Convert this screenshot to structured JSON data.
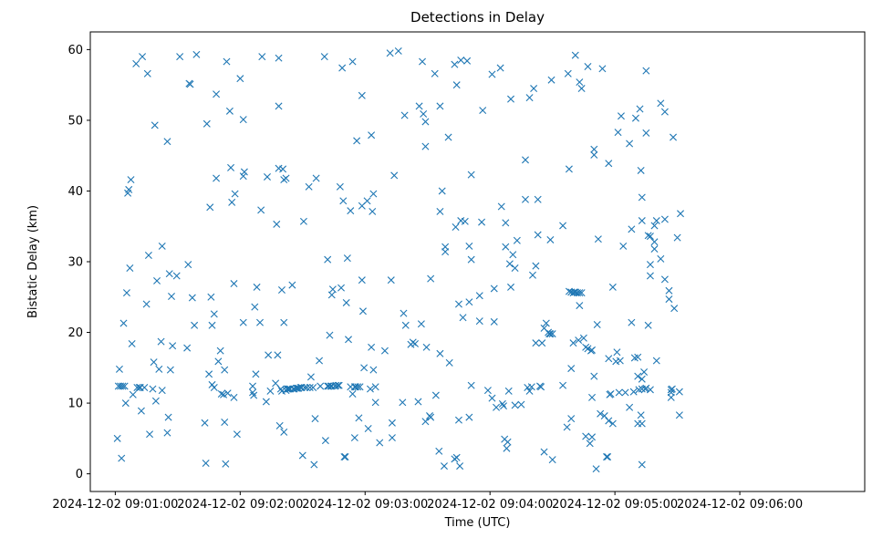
{
  "chart_data": {
    "type": "scatter",
    "title": "Detections in Delay",
    "xlabel": "Time (UTC)",
    "ylabel": "Bistatic Delay (km)",
    "marker": "x",
    "color": "#1f77b4",
    "grid": false,
    "x_range_seconds_after_0901": [
      -12,
      360
    ],
    "y_range": [
      -2.5,
      62.5
    ],
    "x_ticks": [
      "2024-12-02 09:01:00",
      "2024-12-02 09:02:00",
      "2024-12-02 09:03:00",
      "2024-12-02 09:04:00",
      "2024-12-02 09:05:00",
      "2024-12-02 09:06:00"
    ],
    "y_ticks": [
      0,
      10,
      20,
      30,
      40,
      50,
      60
    ],
    "points": [
      [
        1,
        5
      ],
      [
        1.5,
        12.4
      ],
      [
        2,
        14.8
      ],
      [
        2.5,
        12.4
      ],
      [
        3,
        2.2
      ],
      [
        3.5,
        12.4
      ],
      [
        4,
        21.3
      ],
      [
        4.5,
        12.4
      ],
      [
        5,
        10
      ],
      [
        5.5,
        25.6
      ],
      [
        6,
        39.7
      ],
      [
        6.5,
        40.2
      ],
      [
        7,
        29.1
      ],
      [
        7.5,
        41.6
      ],
      [
        8,
        18.4
      ],
      [
        8.5,
        11.2
      ],
      [
        10,
        58
      ],
      [
        10.5,
        12.2
      ],
      [
        11.5,
        12.2
      ],
      [
        12,
        12.2
      ],
      [
        12.5,
        8.9
      ],
      [
        13,
        59
      ],
      [
        14,
        12.2
      ],
      [
        15.5,
        56.6
      ],
      [
        15,
        24
      ],
      [
        16,
        30.9
      ],
      [
        16.5,
        5.6
      ],
      [
        18,
        12
      ],
      [
        18.5,
        15.8
      ],
      [
        19,
        49.3
      ],
      [
        19.5,
        10.3
      ],
      [
        20,
        27.3
      ],
      [
        21,
        14.8
      ],
      [
        22.5,
        32.2
      ],
      [
        22,
        18.7
      ],
      [
        22.5,
        11.8
      ],
      [
        25,
        47
      ],
      [
        25.5,
        8
      ],
      [
        25,
        5.8
      ],
      [
        26,
        28.3
      ],
      [
        26.5,
        14.7
      ],
      [
        27,
        25.1
      ],
      [
        27.5,
        18.1
      ],
      [
        29.5,
        28
      ],
      [
        31,
        59
      ],
      [
        34.5,
        17.8
      ],
      [
        35,
        29.6
      ],
      [
        35.5,
        55.2
      ],
      [
        36,
        55.1
      ],
      [
        37,
        24.9
      ],
      [
        38,
        21
      ],
      [
        39,
        59.3
      ],
      [
        43,
        7.2
      ],
      [
        43.5,
        1.5
      ],
      [
        44,
        49.5
      ],
      [
        45.5,
        37.7
      ],
      [
        45,
        14.1
      ],
      [
        46,
        25
      ],
      [
        46.5,
        21
      ],
      [
        46.5,
        12.6
      ],
      [
        47.5,
        12.2
      ],
      [
        47.5,
        22.6
      ],
      [
        48.5,
        53.7
      ],
      [
        48.5,
        41.8
      ],
      [
        49.5,
        15.9
      ],
      [
        50.5,
        17.4
      ],
      [
        51,
        11.3
      ],
      [
        52,
        11.2
      ],
      [
        52.5,
        14.7
      ],
      [
        52.5,
        7.3
      ],
      [
        53,
        1.4
      ],
      [
        53.5,
        58.3
      ],
      [
        54,
        11.4
      ],
      [
        55,
        51.3
      ],
      [
        55.5,
        43.3
      ],
      [
        56,
        38.4
      ],
      [
        57,
        26.9
      ],
      [
        57,
        10.8
      ],
      [
        57.5,
        39.6
      ],
      [
        58.5,
        5.6
      ],
      [
        60,
        55.9
      ],
      [
        61.5,
        50.1
      ],
      [
        61.5,
        21.4
      ],
      [
        62,
        42.7
      ],
      [
        61.5,
        42.1
      ],
      [
        66,
        12.4
      ],
      [
        66,
        11.5
      ],
      [
        66.5,
        11.1
      ],
      [
        67,
        23.6
      ],
      [
        67.5,
        14.1
      ],
      [
        68,
        26.4
      ],
      [
        69.5,
        21.4
      ],
      [
        70,
        37.3
      ],
      [
        70.5,
        59
      ],
      [
        72.5,
        10.2
      ],
      [
        73,
        42
      ],
      [
        73.5,
        16.8
      ],
      [
        74.5,
        11.7
      ],
      [
        77,
        12.8
      ],
      [
        77.5,
        35.3
      ],
      [
        78.5,
        43.2
      ],
      [
        78,
        16.8
      ],
      [
        78.5,
        52
      ],
      [
        78.5,
        58.8
      ],
      [
        79,
        6.8
      ],
      [
        79.5,
        12
      ],
      [
        80,
        11.7
      ],
      [
        81,
        41.6
      ],
      [
        80,
        26
      ],
      [
        80.5,
        43.1
      ],
      [
        81,
        21.4
      ],
      [
        81,
        5.9
      ],
      [
        82,
        41.8
      ],
      [
        82,
        11.8
      ],
      [
        82.5,
        12
      ],
      [
        83,
        12
      ],
      [
        83.5,
        12
      ],
      [
        84,
        12
      ],
      [
        85,
        26.7
      ],
      [
        85.5,
        12
      ],
      [
        86,
        12
      ],
      [
        87,
        12.1
      ],
      [
        87.5,
        12.1
      ],
      [
        88,
        12.1
      ],
      [
        89,
        12.2
      ],
      [
        89.5,
        12.2
      ],
      [
        90,
        2.6
      ],
      [
        90.5,
        35.7
      ],
      [
        91,
        12.2
      ],
      [
        92,
        12.2
      ],
      [
        93,
        40.6
      ],
      [
        93.5,
        12.2
      ],
      [
        94,
        13.7
      ],
      [
        95,
        12.2
      ],
      [
        95.5,
        1.3
      ],
      [
        96,
        7.8
      ],
      [
        96.5,
        41.8
      ],
      [
        98,
        16
      ],
      [
        98.5,
        12.4
      ],
      [
        100.5,
        59
      ],
      [
        101,
        4.7
      ],
      [
        102,
        30.3
      ],
      [
        102,
        12.4
      ],
      [
        102.5,
        12.4
      ],
      [
        103.5,
        12.4
      ],
      [
        103,
        19.6
      ],
      [
        104,
        25.3
      ],
      [
        104,
        12.4
      ],
      [
        104.5,
        26.1
      ],
      [
        105.5,
        12.4
      ],
      [
        106,
        12.5
      ],
      [
        107,
        12.5
      ],
      [
        107.5,
        12.5
      ],
      [
        108,
        40.6
      ],
      [
        108.5,
        26.3
      ],
      [
        109,
        57.4
      ],
      [
        109.5,
        38.6
      ],
      [
        110,
        2.4
      ],
      [
        110.5,
        2.4
      ],
      [
        111,
        24.2
      ],
      [
        111.5,
        30.5
      ],
      [
        112,
        19
      ],
      [
        113,
        12.3
      ],
      [
        113,
        37.2
      ],
      [
        114,
        11.3
      ],
      [
        114,
        58.3
      ],
      [
        115,
        12.3
      ],
      [
        115,
        5.1
      ],
      [
        115.5,
        12.3
      ],
      [
        116,
        47.1
      ],
      [
        116.5,
        12.3
      ],
      [
        117,
        7.9
      ],
      [
        117.5,
        12.3
      ],
      [
        118.5,
        37.9
      ],
      [
        118.5,
        53.5
      ],
      [
        118.5,
        27.4
      ],
      [
        119.5,
        15
      ],
      [
        119,
        23
      ],
      [
        121.5,
        6.4
      ],
      [
        121,
        38.6
      ],
      [
        122.5,
        12
      ],
      [
        123,
        17.9
      ],
      [
        123.5,
        37.1
      ],
      [
        123,
        47.9
      ],
      [
        124,
        39.6
      ],
      [
        124,
        14.7
      ],
      [
        125,
        10.1
      ],
      [
        125,
        12.3
      ],
      [
        127,
        4.4
      ],
      [
        129.5,
        17.4
      ],
      [
        132,
        59.5
      ],
      [
        132.5,
        27.4
      ],
      [
        133,
        5.1
      ],
      [
        133,
        7.2
      ],
      [
        134,
        42.2
      ],
      [
        136,
        59.8
      ],
      [
        138,
        10.1
      ],
      [
        138.5,
        22.7
      ],
      [
        139,
        50.7
      ],
      [
        139.5,
        21
      ],
      [
        142,
        18.3
      ],
      [
        143,
        18.6
      ],
      [
        144,
        18.4
      ],
      [
        145.5,
        10.2
      ],
      [
        146,
        52
      ],
      [
        147,
        21.2
      ],
      [
        147.5,
        58.3
      ],
      [
        148,
        50.9
      ],
      [
        149,
        49.8
      ],
      [
        149,
        46.3
      ],
      [
        149,
        7.4
      ],
      [
        149.5,
        17.9
      ],
      [
        151,
        8.2
      ],
      [
        151.5,
        8
      ],
      [
        151.5,
        27.6
      ],
      [
        153.5,
        56.6
      ],
      [
        154,
        11.1
      ],
      [
        155.5,
        3.2
      ],
      [
        156,
        37.1
      ],
      [
        156,
        52
      ],
      [
        156,
        17
      ],
      [
        157,
        40
      ],
      [
        158,
        1.1
      ],
      [
        158.5,
        31.4
      ],
      [
        158.5,
        32.1
      ],
      [
        160,
        47.6
      ],
      [
        160.5,
        15.7
      ],
      [
        163,
        57.9
      ],
      [
        163.5,
        34.9
      ],
      [
        163,
        2.1
      ],
      [
        164,
        2.3
      ],
      [
        164,
        55
      ],
      [
        165,
        24
      ],
      [
        165.5,
        1.1
      ],
      [
        165,
        7.6
      ],
      [
        166,
        35.8
      ],
      [
        166,
        58.5
      ],
      [
        167,
        22.1
      ],
      [
        168,
        35.7
      ],
      [
        169,
        58.4
      ],
      [
        170,
        24.3
      ],
      [
        170,
        32.2
      ],
      [
        170,
        8
      ],
      [
        171,
        30.3
      ],
      [
        171,
        42.3
      ],
      [
        171,
        12.5
      ],
      [
        175,
        25.2
      ],
      [
        175,
        21.6
      ],
      [
        176,
        35.6
      ],
      [
        176.5,
        51.4
      ],
      [
        179,
        11.8
      ],
      [
        181,
        10.7
      ],
      [
        181,
        56.5
      ],
      [
        182,
        21.5
      ],
      [
        182,
        26.2
      ],
      [
        183,
        9.4
      ],
      [
        185,
        57.4
      ],
      [
        185.5,
        37.8
      ],
      [
        186,
        9.9
      ],
      [
        186.5,
        9.6
      ],
      [
        187,
        4.9
      ],
      [
        187.5,
        35.5
      ],
      [
        187.5,
        32.1
      ],
      [
        188,
        3.6
      ],
      [
        188.5,
        4.5
      ],
      [
        189,
        11.7
      ],
      [
        189.5,
        29.7
      ],
      [
        190,
        53
      ],
      [
        190,
        26.4
      ],
      [
        191,
        31
      ],
      [
        192,
        29.1
      ],
      [
        192,
        9.7
      ],
      [
        193,
        33
      ],
      [
        195,
        9.8
      ],
      [
        197,
        44.4
      ],
      [
        197,
        38.8
      ],
      [
        198,
        12.2
      ],
      [
        199,
        53.2
      ],
      [
        199,
        11.7
      ],
      [
        200,
        12.3
      ],
      [
        200.5,
        28.1
      ],
      [
        201,
        54.5
      ],
      [
        202,
        18.5
      ],
      [
        202,
        29.4
      ],
      [
        203,
        38.8
      ],
      [
        203,
        33.8
      ],
      [
        204,
        12.4
      ],
      [
        204.5,
        12.3
      ],
      [
        205,
        18.5
      ],
      [
        206,
        20.6
      ],
      [
        206,
        3.1
      ],
      [
        207,
        21.3
      ],
      [
        208,
        20
      ],
      [
        208.5,
        19.8
      ],
      [
        209,
        19.8
      ],
      [
        209,
        33.1
      ],
      [
        209.5,
        55.7
      ],
      [
        210,
        2
      ],
      [
        210,
        19.8
      ],
      [
        215,
        35.1
      ],
      [
        215,
        12.5
      ],
      [
        217,
        6.6
      ],
      [
        217.5,
        56.6
      ],
      [
        218,
        43.1
      ],
      [
        218,
        25.8
      ],
      [
        219,
        25.7
      ],
      [
        219,
        7.8
      ],
      [
        219,
        14.9
      ],
      [
        220,
        25.6
      ],
      [
        220,
        18.5
      ],
      [
        220.5,
        25.7
      ],
      [
        221,
        59.2
      ],
      [
        221,
        25.7
      ],
      [
        222,
        25.6
      ],
      [
        222.5,
        18.9
      ],
      [
        223,
        55.4
      ],
      [
        223,
        25.6
      ],
      [
        223,
        23.8
      ],
      [
        224,
        25.6
      ],
      [
        224,
        54.5
      ],
      [
        225,
        19.2
      ],
      [
        226,
        17.9
      ],
      [
        226,
        5.3
      ],
      [
        227,
        17.7
      ],
      [
        227,
        57.6
      ],
      [
        228,
        4.3
      ],
      [
        228.5,
        17.4
      ],
      [
        229,
        5.2
      ],
      [
        229,
        17.5
      ],
      [
        229,
        10.8
      ],
      [
        230,
        45.9
      ],
      [
        230,
        45.1
      ],
      [
        230,
        13.8
      ],
      [
        231,
        0.7
      ],
      [
        231.5,
        21.1
      ],
      [
        232,
        33.2
      ],
      [
        233,
        8.5
      ],
      [
        234,
        57.3
      ],
      [
        235,
        8.2
      ],
      [
        236,
        2.4
      ],
      [
        236.5,
        2.4
      ],
      [
        237,
        43.9
      ],
      [
        237,
        16.3
      ],
      [
        237.5,
        11.2
      ],
      [
        237,
        7.5
      ],
      [
        238,
        11.3
      ],
      [
        239,
        7.1
      ],
      [
        239,
        26.4
      ],
      [
        240.5,
        15.9
      ],
      [
        241,
        17.2
      ],
      [
        241.5,
        48.3
      ],
      [
        242,
        11.5
      ],
      [
        242.5,
        16
      ],
      [
        243,
        50.6
      ],
      [
        244,
        32.2
      ],
      [
        245,
        11.5
      ],
      [
        247,
        9.4
      ],
      [
        247,
        46.7
      ],
      [
        248,
        34.6
      ],
      [
        248,
        21.4
      ],
      [
        249,
        11.6
      ],
      [
        249.5,
        16.4
      ],
      [
        250,
        50.3
      ],
      [
        251,
        7.1
      ],
      [
        251,
        13.8
      ],
      [
        251,
        16.5
      ],
      [
        251.5,
        11.9
      ],
      [
        252,
        51.6
      ],
      [
        252.5,
        8.3
      ],
      [
        252.5,
        42.9
      ],
      [
        253,
        13.4
      ],
      [
        253,
        39.1
      ],
      [
        253,
        35.8
      ],
      [
        253,
        12
      ],
      [
        253,
        7.1
      ],
      [
        253,
        1.3
      ],
      [
        254,
        14.4
      ],
      [
        254.5,
        12
      ],
      [
        255,
        48.2
      ],
      [
        255,
        57
      ],
      [
        255,
        12.1
      ],
      [
        256,
        33.7
      ],
      [
        256,
        21
      ],
      [
        257,
        11.9
      ],
      [
        257,
        29.6
      ],
      [
        257,
        28
      ],
      [
        257,
        33.6
      ],
      [
        259,
        35.1
      ],
      [
        259,
        31.8
      ],
      [
        259,
        32.8
      ],
      [
        260,
        35.8
      ],
      [
        260,
        16
      ],
      [
        262,
        30.4
      ],
      [
        262,
        52.4
      ],
      [
        264,
        51.2
      ],
      [
        264,
        36
      ],
      [
        264,
        27.5
      ],
      [
        266,
        25.9
      ],
      [
        266,
        24.7
      ],
      [
        267,
        11.9
      ],
      [
        267,
        11.5
      ],
      [
        267,
        10.8
      ],
      [
        267.5,
        12
      ],
      [
        268,
        47.6
      ],
      [
        268.5,
        23.4
      ],
      [
        270,
        33.4
      ],
      [
        271,
        11.6
      ],
      [
        271,
        8.3
      ],
      [
        271.5,
        36.8
      ]
    ]
  }
}
